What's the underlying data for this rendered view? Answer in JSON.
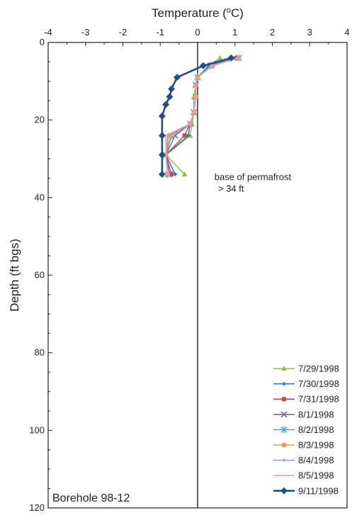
{
  "chart_data": {
    "type": "line",
    "title": "",
    "xlabel": "Temperature (",
    "xlabel_super": "o",
    "xlabel_tail": "C)",
    "ylabel": "Depth (ft bgs)",
    "xlim": [
      -4,
      4
    ],
    "ylim": [
      0,
      120
    ],
    "y_inverted": true,
    "x_axis_position": "top",
    "x_ticks": [
      -4,
      -3,
      -2,
      -1,
      0,
      1,
      2,
      3,
      4
    ],
    "x_tick_labels": [
      "-4",
      "-3",
      "-2",
      "-1",
      "0",
      "1",
      "2",
      "3",
      "4"
    ],
    "y_ticks": [
      0,
      20,
      40,
      60,
      80,
      100,
      120
    ],
    "y_tick_labels": [
      "0",
      "20",
      "40",
      "60",
      "80",
      "100",
      "120"
    ],
    "grid": false,
    "legend_position": "bottom-right",
    "annotations": [
      {
        "text": "base of permafrost",
        "x": 0.45,
        "y": 35.5
      },
      {
        "text": "> 34 ft",
        "x": 0.55,
        "y": 38.5
      }
    ],
    "corner_label": "Borehole 98-12",
    "series": [
      {
        "name": "7/29/1998",
        "color": "#8cc152",
        "marker": "triangle",
        "points": [
          [
            0.6,
            4
          ],
          [
            0.3,
            6
          ],
          [
            0.0,
            9
          ],
          [
            -0.05,
            11
          ],
          [
            -0.1,
            14
          ],
          [
            -0.1,
            18
          ],
          [
            -0.15,
            21
          ],
          [
            -0.2,
            24
          ],
          [
            -0.85,
            29
          ],
          [
            -0.35,
            34
          ]
        ]
      },
      {
        "name": "7/30/1998",
        "color": "#3a78b5",
        "marker": "small-diamond",
        "points": [
          [
            1.0,
            4
          ],
          [
            0.3,
            6
          ],
          [
            0.0,
            9
          ],
          [
            -0.05,
            11
          ],
          [
            -0.05,
            14
          ],
          [
            -0.1,
            18
          ],
          [
            -0.2,
            21
          ],
          [
            -0.25,
            24
          ],
          [
            -0.85,
            29
          ],
          [
            -0.6,
            34
          ]
        ]
      },
      {
        "name": "7/31/1998",
        "color": "#c0504d",
        "marker": "square",
        "points": [
          [
            1.05,
            4
          ],
          [
            0.35,
            6
          ],
          [
            0.0,
            9
          ],
          [
            -0.05,
            11
          ],
          [
            -0.05,
            14
          ],
          [
            -0.1,
            18
          ],
          [
            -0.2,
            21
          ],
          [
            -0.35,
            24
          ],
          [
            -0.85,
            29
          ],
          [
            -0.7,
            34
          ]
        ]
      },
      {
        "name": "8/1/1998",
        "color": "#8064a2",
        "marker": "x",
        "points": [
          [
            1.1,
            4
          ],
          [
            0.35,
            6
          ],
          [
            0.0,
            9
          ],
          [
            -0.05,
            11
          ],
          [
            -0.05,
            14
          ],
          [
            -0.1,
            18
          ],
          [
            -0.2,
            21
          ],
          [
            -0.6,
            24
          ],
          [
            -0.85,
            29
          ],
          [
            -0.75,
            34
          ]
        ]
      },
      {
        "name": "8/2/1998",
        "color": "#4bacc6",
        "marker": "asterisk",
        "points": [
          [
            1.1,
            4
          ],
          [
            0.35,
            6
          ],
          [
            0.0,
            9
          ],
          [
            -0.05,
            11
          ],
          [
            -0.05,
            14
          ],
          [
            -0.1,
            18
          ],
          [
            -0.2,
            21
          ],
          [
            -0.7,
            24
          ],
          [
            -0.85,
            29
          ],
          [
            -0.8,
            34
          ]
        ]
      },
      {
        "name": "8/3/1998",
        "color": "#f79646",
        "marker": "circle",
        "points": [
          [
            1.1,
            4
          ],
          [
            0.4,
            6
          ],
          [
            0.0,
            9
          ],
          [
            -0.05,
            11
          ],
          [
            -0.05,
            14
          ],
          [
            -0.1,
            18
          ],
          [
            -0.2,
            21
          ],
          [
            -0.75,
            24
          ],
          [
            -0.85,
            29
          ],
          [
            -0.8,
            34
          ]
        ]
      },
      {
        "name": "8/4/1998",
        "color": "#8fa2d4",
        "marker": "plus",
        "points": [
          [
            1.1,
            4
          ],
          [
            0.4,
            6
          ],
          [
            0.0,
            9
          ],
          [
            -0.05,
            11
          ],
          [
            -0.05,
            14
          ],
          [
            -0.1,
            18
          ],
          [
            -0.2,
            21
          ],
          [
            -0.8,
            24
          ],
          [
            -0.85,
            29
          ],
          [
            -0.8,
            34
          ]
        ]
      },
      {
        "name": "8/5/1998",
        "color": "#e6a0a8",
        "marker": "dash",
        "points": [
          [
            1.1,
            4
          ],
          [
            0.4,
            6
          ],
          [
            0.0,
            9
          ],
          [
            -0.05,
            11
          ],
          [
            -0.05,
            14
          ],
          [
            -0.1,
            18
          ],
          [
            -0.2,
            21
          ],
          [
            -0.85,
            24
          ],
          [
            -0.85,
            29
          ],
          [
            -0.8,
            34
          ]
        ]
      },
      {
        "name": "9/11/1998",
        "color": "#1f4e8c",
        "marker": "diamond",
        "points": [
          [
            0.9,
            4
          ],
          [
            0.15,
            6
          ],
          [
            -0.55,
            9
          ],
          [
            -0.7,
            12
          ],
          [
            -0.75,
            14
          ],
          [
            -0.85,
            16
          ],
          [
            -0.95,
            19
          ],
          [
            -0.95,
            24
          ],
          [
            -0.95,
            29
          ],
          [
            -0.95,
            34
          ]
        ]
      }
    ]
  }
}
